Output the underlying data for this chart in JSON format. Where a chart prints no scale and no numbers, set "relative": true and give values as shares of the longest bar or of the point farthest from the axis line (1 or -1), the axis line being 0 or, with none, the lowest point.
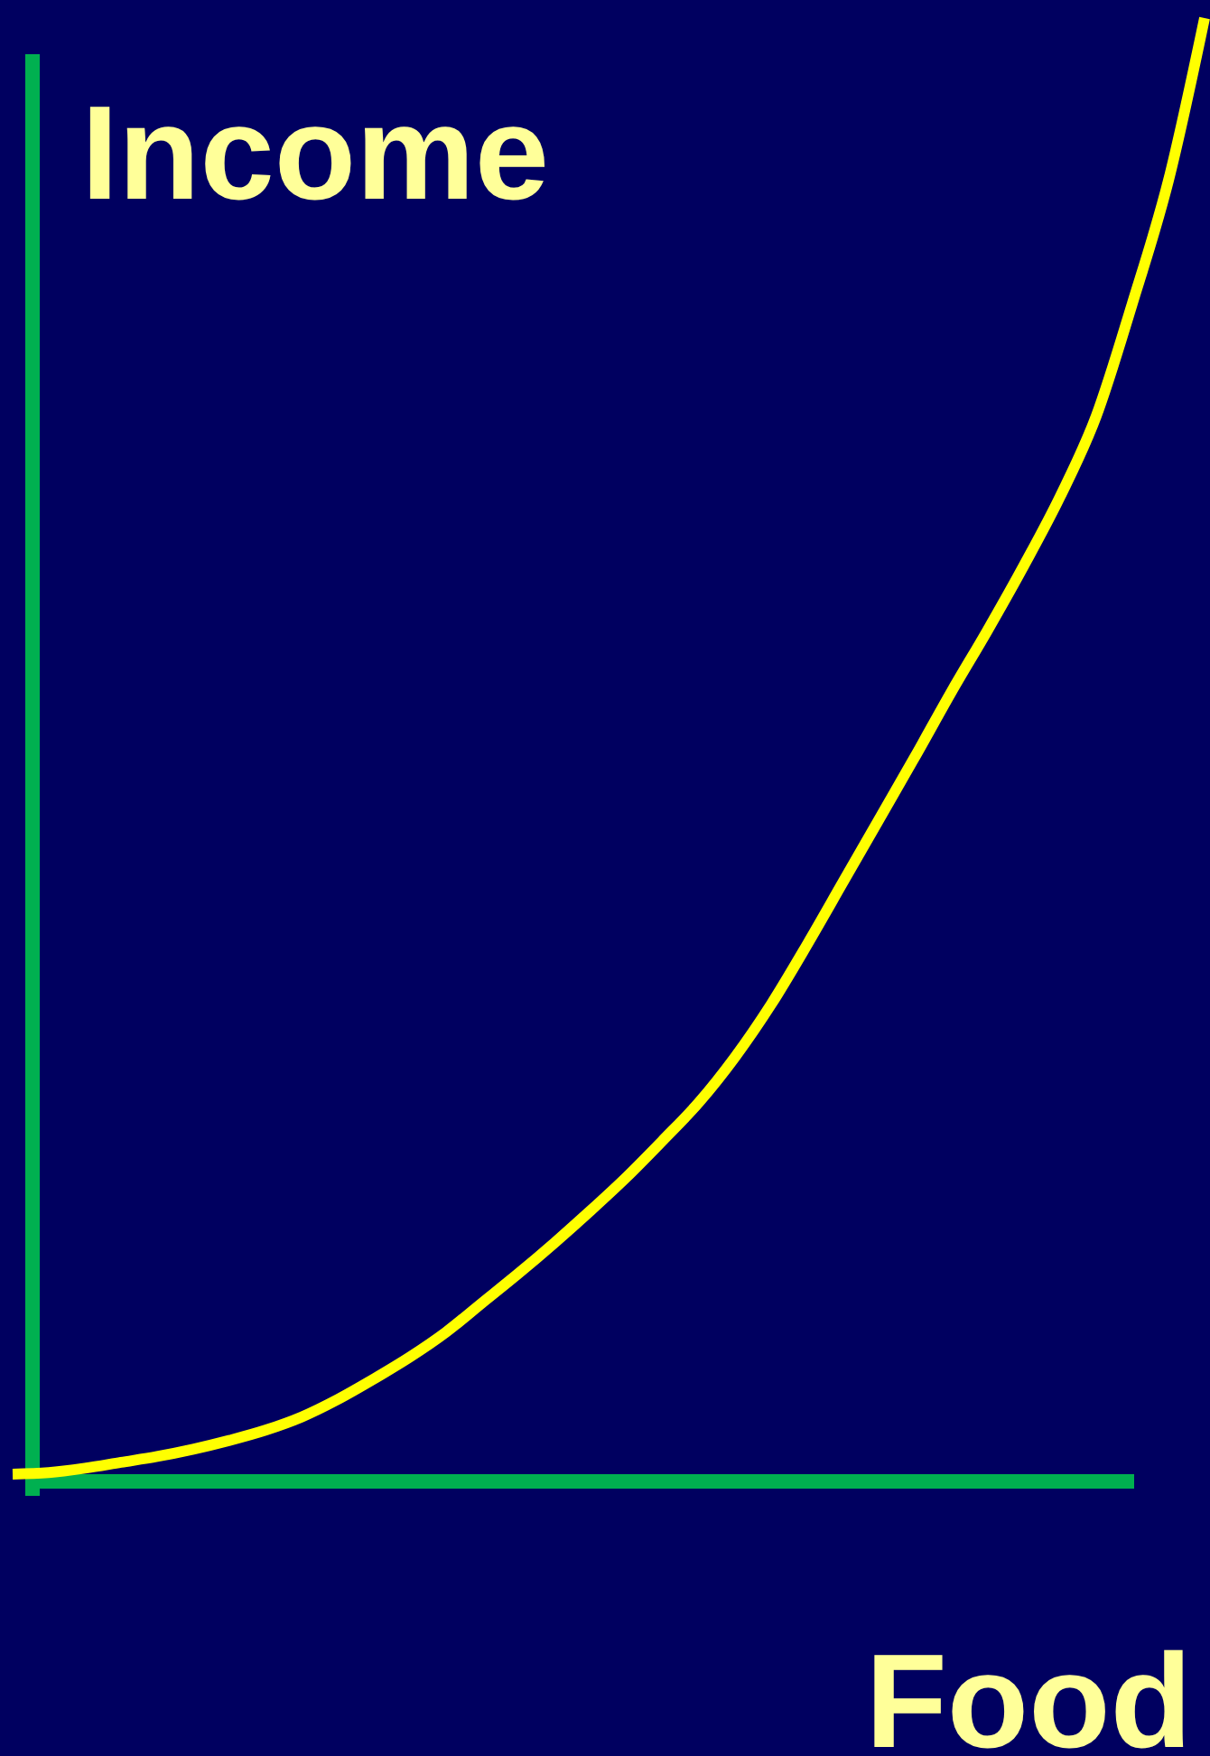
{
  "chart_data": {
    "type": "line",
    "relative": true,
    "xlabel": "Food",
    "ylabel": "Income",
    "categories": [
      null,
      null,
      null,
      null,
      null,
      null,
      null,
      null,
      null,
      null,
      null,
      null,
      null,
      null,
      null,
      null,
      null,
      null,
      null,
      null,
      null,
      null,
      null,
      null,
      null,
      null,
      null,
      null,
      null,
      null,
      null,
      null,
      null,
      null
    ],
    "series": [
      {
        "color": "#ffff00",
        "values": [
          0.005,
          0.006,
          0.009,
          0.013,
          0.017,
          0.022,
          0.028,
          0.035,
          0.044,
          0.056,
          0.07,
          0.085,
          0.102,
          0.122,
          0.142,
          0.163,
          0.185,
          0.208,
          0.233,
          0.259,
          0.29,
          0.326,
          0.367,
          0.41,
          0.453,
          0.496,
          0.54,
          0.582,
          0.626,
          0.673,
          0.728,
          0.805,
          0.889,
          1
        ]
      }
    ]
  }
}
